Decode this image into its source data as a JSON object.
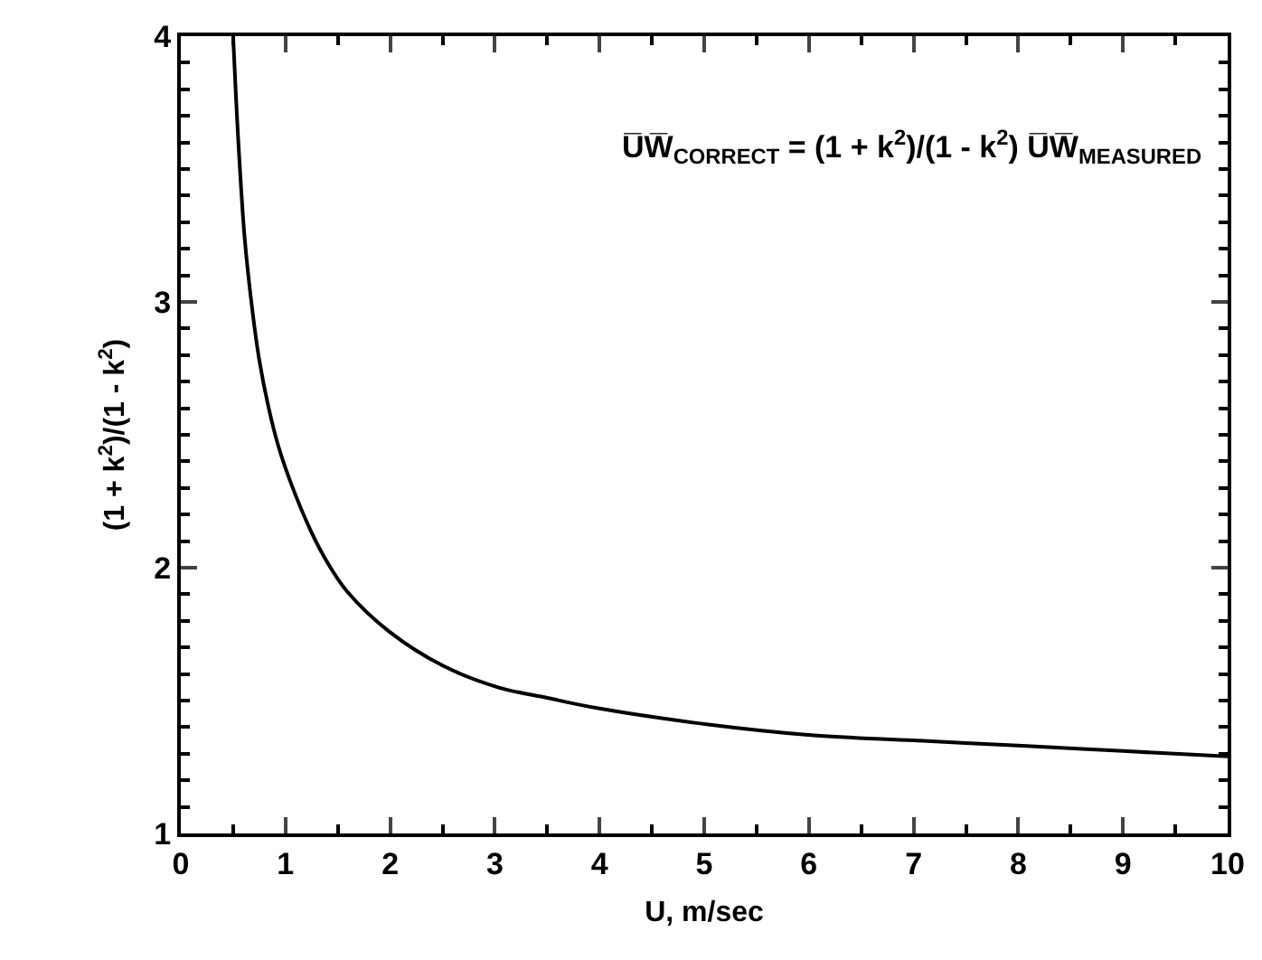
{
  "chart_data": {
    "type": "line",
    "xlabel": "U, m/sec",
    "ylabel": "(1 + k$^{2}$)/(1 - k$^{2}$)",
    "annotations": [
      "U̅W̅$_{CORRECT}$ = (1 + k$^{2}$)/(1 - k$^{2}$) U̅W̅$_{MEASURED}$"
    ],
    "x": [
      0.5,
      0.55,
      0.61,
      0.68,
      0.75,
      0.84,
      0.93,
      1.05,
      1.24,
      1.4,
      1.59,
      1.99,
      2.51,
      3.03,
      3.5,
      4.0,
      5.04,
      6.02,
      7.0,
      8.04,
      9.0,
      10.0
    ],
    "series": [
      {
        "color": "#000000",
        "values": [
          4.0,
          3.6,
          3.24,
          2.98,
          2.78,
          2.6,
          2.46,
          2.32,
          2.14,
          2.02,
          1.91,
          1.76,
          1.63,
          1.55,
          1.51,
          1.47,
          1.41,
          1.37,
          1.35,
          1.33,
          1.31,
          1.29
        ]
      }
    ],
    "xlim": [
      0,
      10
    ],
    "xticks": [
      0,
      1,
      2,
      3,
      4,
      5,
      6,
      7,
      8,
      9,
      10
    ],
    "ylim": [
      1,
      4
    ],
    "yticks": [
      1,
      2,
      3,
      4
    ],
    "grid": false,
    "marker": "none",
    "line_style": "solid"
  }
}
